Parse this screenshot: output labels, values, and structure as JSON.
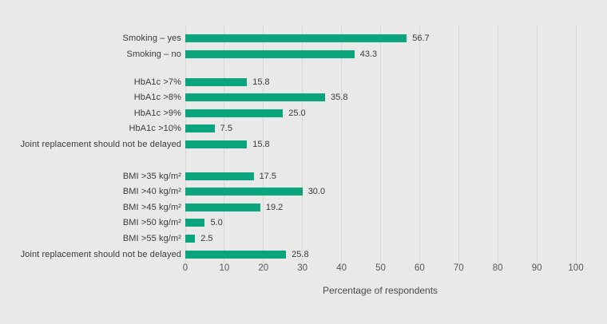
{
  "colors": {
    "background": "#e9e9e9",
    "bar": "#0aa57d",
    "gridline": "#d9d9d9",
    "label_text": "#3a3a3c",
    "tick_text": "#55555a"
  },
  "chart_data": {
    "type": "bar",
    "orientation": "horizontal",
    "xlabel": "Percentage of respondents",
    "xlim": [
      0,
      100
    ],
    "xticks": [
      0,
      10,
      20,
      30,
      40,
      50,
      60,
      70,
      80,
      90,
      100
    ],
    "grid": "vertical",
    "legend": "none",
    "groups": [
      {
        "name": "smoking",
        "rows": [
          {
            "label": "Smoking – yes",
            "value": 56.7,
            "display": "56.7"
          },
          {
            "label": "Smoking – no",
            "value": 43.3,
            "display": "43.3"
          }
        ]
      },
      {
        "name": "hba1c",
        "rows": [
          {
            "label": "HbA1c >7%",
            "value": 15.8,
            "display": "15.8"
          },
          {
            "label": "HbA1c >8%",
            "value": 35.8,
            "display": "35.8"
          },
          {
            "label": "HbA1c >9%",
            "value": 25.0,
            "display": "25.0"
          },
          {
            "label": "HbA1c >10%",
            "value": 7.5,
            "display": "7.5"
          },
          {
            "label": "Joint replacement should not be delayed",
            "value": 15.8,
            "display": "15.8"
          }
        ]
      },
      {
        "name": "bmi",
        "rows": [
          {
            "label": "BMI >35 kg/m²",
            "value": 17.5,
            "display": "17.5"
          },
          {
            "label": "BMI >40 kg/m²",
            "value": 30.0,
            "display": "30.0"
          },
          {
            "label": "BMI >45 kg/m²",
            "value": 19.2,
            "display": "19.2"
          },
          {
            "label": "BMI >50 kg/m²",
            "value": 5.0,
            "display": "5.0"
          },
          {
            "label": "BMI >55 kg/m²",
            "value": 2.5,
            "display": "2.5"
          },
          {
            "label": "Joint replacement should not be delayed",
            "value": 25.8,
            "display": "25.8"
          }
        ]
      }
    ]
  }
}
